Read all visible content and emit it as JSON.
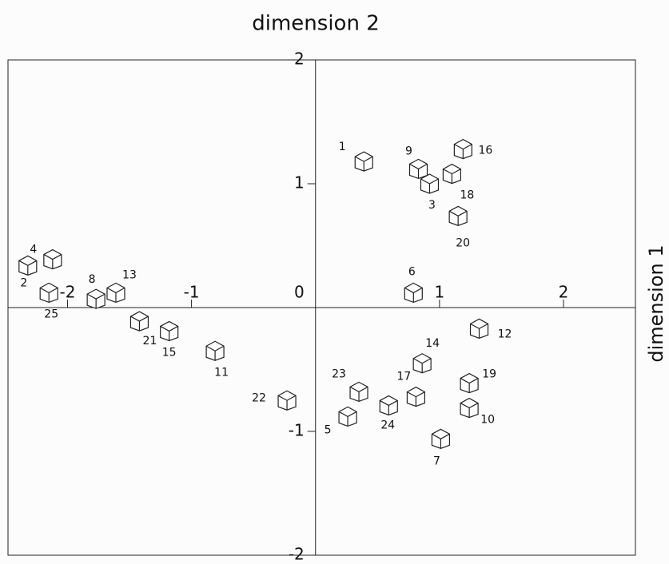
{
  "chart_data": {
    "type": "scatter",
    "title": "dimension 2",
    "xlabel": "dimension 1",
    "xlim": [
      -2.48,
      2.58
    ],
    "ylim": [
      -2,
      2
    ],
    "xticks": [
      -2,
      -1,
      1,
      2
    ],
    "yticks": [
      -2,
      -1,
      0,
      1,
      2
    ],
    "color": "#222222",
    "labels": [
      "1",
      "2",
      "3",
      "4",
      "5",
      "6",
      "7",
      "8",
      "9",
      "10",
      "11",
      "12",
      "13",
      "14",
      "15",
      "16",
      "17",
      "18",
      "19",
      "20",
      "21",
      "22",
      "23",
      "24",
      "25"
    ],
    "x": [
      0.39,
      -2.32,
      0.92,
      -2.12,
      0.26,
      0.79,
      1.01,
      -1.77,
      0.83,
      1.24,
      -0.81,
      1.32,
      -1.61,
      0.86,
      -1.18,
      1.19,
      0.81,
      1.1,
      1.24,
      1.15,
      -1.42,
      -0.23,
      0.35,
      0.59,
      -2.15
    ],
    "values": [
      1.18,
      0.34,
      1.0,
      0.39,
      -0.88,
      0.12,
      -1.06,
      0.07,
      1.12,
      -0.81,
      -0.35,
      -0.17,
      0.12,
      -0.45,
      -0.19,
      1.28,
      -0.72,
      1.08,
      -0.61,
      0.74,
      -0.11,
      -0.75,
      -0.68,
      -0.79,
      0.12
    ]
  }
}
